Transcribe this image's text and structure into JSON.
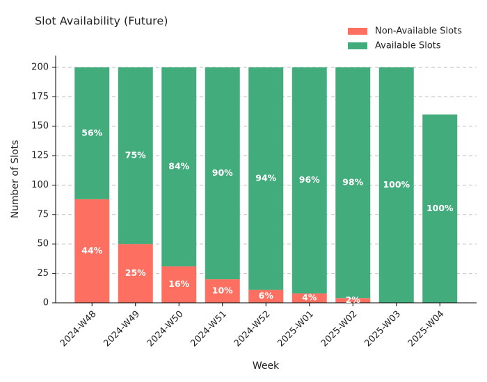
{
  "chart_data": {
    "type": "stacked_bar",
    "title": "Slot Availability (Future)",
    "x_label": "Week",
    "y_label": "Number of Slots",
    "categories": [
      "2024-W48",
      "2024-W49",
      "2024-W50",
      "2024-W51",
      "2024-W52",
      "2025-W01",
      "2025-W02",
      "2025-W03",
      "2025-W04"
    ],
    "series": [
      {
        "name": "Non-Available Slots",
        "color": "#fd6f61",
        "values": [
          88,
          50,
          31,
          20,
          11,
          8,
          4,
          0,
          0
        ],
        "percent_labels": [
          "44%",
          "25%",
          "16%",
          "10%",
          "6%",
          "4%",
          "2%",
          null,
          null
        ]
      },
      {
        "name": "Available Slots",
        "color": "#43ac7d",
        "values": [
          112,
          150,
          169,
          180,
          189,
          192,
          196,
          200,
          160
        ],
        "percent_labels": [
          "56%",
          "75%",
          "84%",
          "90%",
          "94%",
          "96%",
          "98%",
          "100%",
          "100%"
        ]
      }
    ],
    "ylim": [
      0,
      210
    ],
    "yticks": [
      0,
      25,
      50,
      75,
      100,
      125,
      150,
      175,
      200
    ],
    "grid": true,
    "legend": "upper right"
  }
}
